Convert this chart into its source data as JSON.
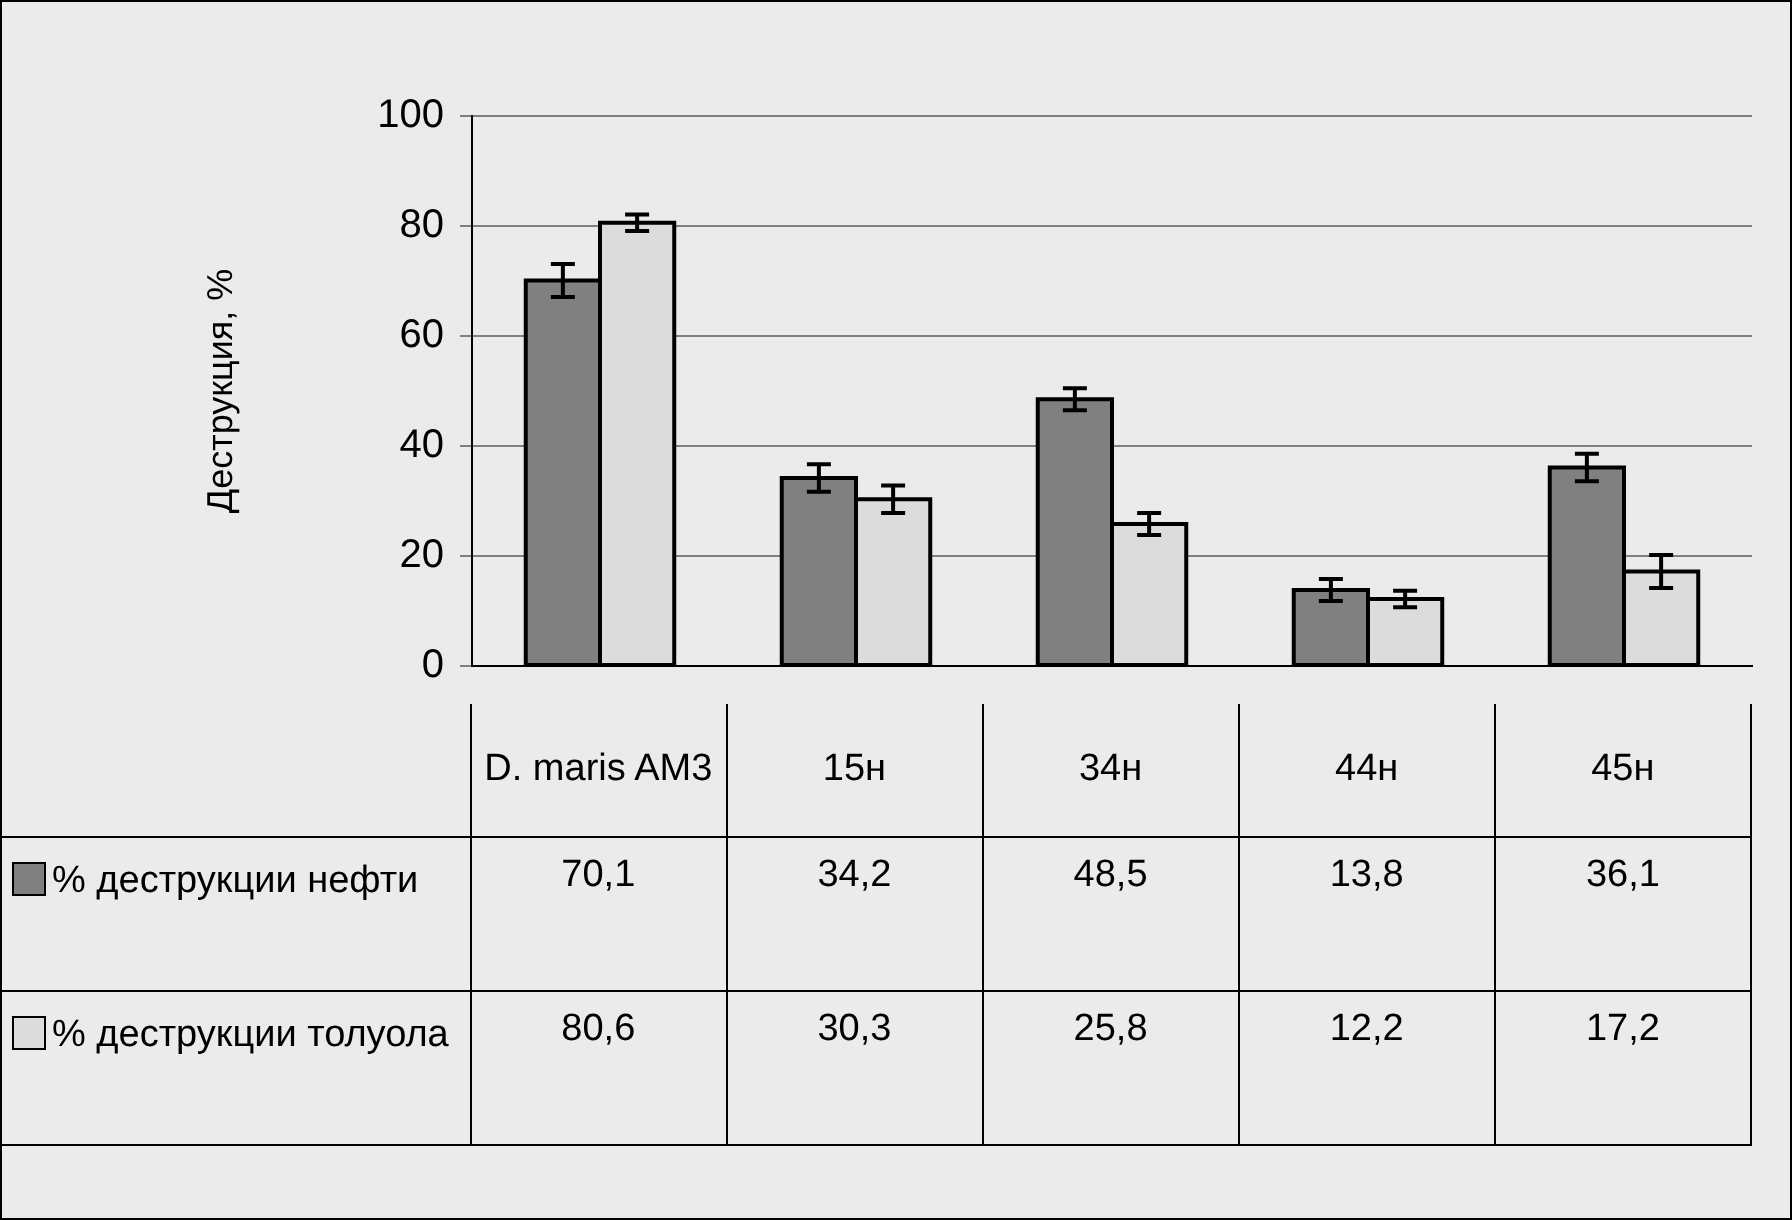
{
  "chart_data": {
    "type": "bar",
    "ylabel": "Деструкция, %",
    "categories": [
      "D. maris AM3",
      "15н",
      "34н",
      "44н",
      "45н"
    ],
    "series": [
      {
        "name": "% деструкции нефти",
        "color": "#808080",
        "values": [
          70.1,
          34.2,
          48.5,
          13.8,
          36.1
        ],
        "errors": [
          3,
          2.5,
          2,
          2,
          2.5
        ],
        "value_labels": [
          "70,1",
          "34,2",
          "48,5",
          "13,8",
          "36,1"
        ]
      },
      {
        "name": "% деструкции толуола",
        "color": "#dcdcdc",
        "values": [
          80.6,
          30.3,
          25.8,
          12.2,
          17.2
        ],
        "errors": [
          1.5,
          2.5,
          2,
          1.5,
          3
        ],
        "value_labels": [
          "80,6",
          "30,3",
          "25,8",
          "12,2",
          "17,2"
        ]
      }
    ],
    "ylim": [
      0,
      100
    ],
    "yticks": [
      0,
      20,
      40,
      60,
      80,
      100
    ],
    "grid": "y",
    "legend": "bottom"
  }
}
